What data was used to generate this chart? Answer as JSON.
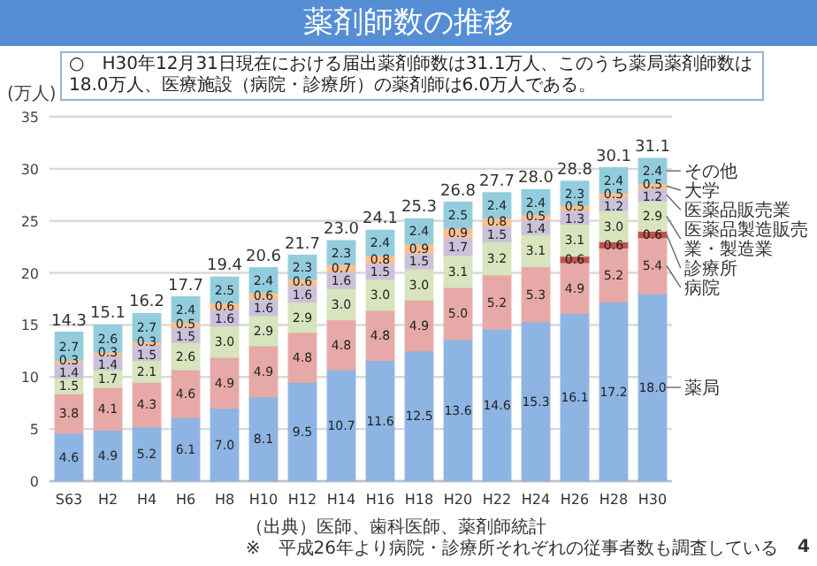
{
  "chart_data": {
    "type": "bar",
    "stacked": true,
    "title": "薬剤師数の推移",
    "subtitle": "○　H30年12月31日現在における届出薬剤師数は31.1万人、このうち薬局薬剤師数は18.0万人、医療施設（病院・診療所）の薬剤師は6.0万人である。",
    "ylabel": "(万人)",
    "categories": [
      "S63",
      "H2",
      "H4",
      "H6",
      "H8",
      "H10",
      "H12",
      "H14",
      "H16",
      "H18",
      "H20",
      "H22",
      "H24",
      "H26",
      "H28",
      "H30"
    ],
    "series": [
      {
        "name": "薬局",
        "color": "#8db4e2",
        "values": [
          4.6,
          4.9,
          5.2,
          6.1,
          7.0,
          8.1,
          9.5,
          10.7,
          11.6,
          12.5,
          13.6,
          14.6,
          15.3,
          16.1,
          17.2,
          18.0
        ],
        "value_labels": [
          "4.6",
          "4.9",
          "5.2",
          "6.1",
          "7.0",
          "8.1",
          "9.5",
          "10.7",
          "11.6",
          "12.5",
          "13.6",
          "14.6",
          "15.3",
          "16.1",
          "17.2",
          "18.0"
        ]
      },
      {
        "name": "病院",
        "color": "#e6a9a7",
        "values": [
          3.8,
          4.1,
          4.3,
          4.6,
          4.9,
          4.9,
          4.8,
          4.8,
          4.8,
          4.9,
          5.0,
          5.2,
          5.3,
          4.9,
          5.2,
          5.4
        ],
        "value_labels": [
          "3.8",
          "4.1",
          "4.3",
          "4.6",
          "4.9",
          "4.9",
          "4.8",
          "4.8",
          "4.8",
          "4.9",
          "5.0",
          "5.2",
          "5.3",
          "4.9",
          "5.2",
          "5.4"
        ]
      },
      {
        "name": "診療所",
        "color": "#c0504d",
        "values": [
          null,
          null,
          null,
          null,
          null,
          null,
          null,
          null,
          null,
          null,
          null,
          null,
          null,
          0.6,
          0.6,
          0.6
        ],
        "value_labels": [
          null,
          null,
          null,
          null,
          null,
          null,
          null,
          null,
          null,
          null,
          null,
          null,
          null,
          "0.6",
          "0.6",
          "0.6"
        ]
      },
      {
        "name": "医薬品製造販売業・製造業",
        "color": "#d7e4bd",
        "values": [
          1.5,
          1.7,
          2.1,
          2.6,
          3.0,
          2.9,
          2.9,
          3.0,
          3.0,
          3.0,
          3.1,
          3.2,
          3.1,
          3.1,
          3.0,
          2.9
        ],
        "value_labels": [
          "1.5",
          "1.7",
          "2.1",
          "2.6",
          "3.0",
          "2.9",
          "2.9",
          "3.0",
          "3.0",
          "3.0",
          "3.1",
          "3.2",
          "3.1",
          "3.1",
          "3.0",
          "2.9"
        ]
      },
      {
        "name": "医薬品販売業",
        "color": "#ccc1da",
        "values": [
          1.4,
          1.4,
          1.5,
          1.5,
          1.6,
          1.6,
          1.6,
          1.6,
          1.5,
          1.5,
          1.7,
          1.5,
          1.4,
          1.3,
          1.2,
          1.2
        ],
        "value_labels": [
          "1.4",
          "1.4",
          "1.5",
          "1.5",
          "1.6",
          "1.6",
          "1.6",
          "1.6",
          "1.5",
          "1.5",
          "1.7",
          "1.5",
          "1.4",
          "1.3",
          "1.2",
          "1.2"
        ]
      },
      {
        "name": "大学",
        "color": "#fac090",
        "values": [
          0.3,
          0.3,
          0.3,
          0.5,
          0.6,
          0.6,
          0.6,
          0.7,
          0.8,
          0.9,
          0.9,
          0.8,
          0.5,
          0.5,
          0.5,
          0.5
        ],
        "value_labels": [
          "0.3",
          "0.3",
          "0.3",
          "0.5",
          "0.6",
          "0.6",
          "0.6",
          "0.7",
          "0.8",
          "0.9",
          "0.9",
          "0.8",
          "0.5",
          "0.5",
          "0.5",
          "0.5"
        ]
      },
      {
        "name": "その他",
        "color": "#93cddd",
        "values": [
          2.7,
          2.6,
          2.7,
          2.4,
          2.5,
          2.4,
          2.3,
          2.3,
          2.4,
          2.4,
          2.5,
          2.4,
          2.4,
          2.3,
          2.4,
          2.4
        ],
        "value_labels": [
          "2.7",
          "2.6",
          "2.7",
          "2.4",
          "2.5",
          "2.4",
          "2.3",
          "2.3",
          "2.4",
          "2.4",
          "2.5",
          "2.4",
          "2.4",
          "2.3",
          "2.4",
          "2.4"
        ]
      }
    ],
    "totals": [
      "14.3",
      "15.1",
      "16.2",
      "17.7",
      "19.4",
      "20.6",
      "21.7",
      "23.0",
      "24.1",
      "25.3",
      "26.8",
      "27.7",
      "28.0",
      "28.8",
      "30.1",
      "31.1"
    ],
    "ylim": [
      0,
      35
    ],
    "yticks": [
      0,
      5,
      10,
      15,
      20,
      25,
      30,
      35
    ],
    "grid": "y",
    "annotations": [
      "（出典）医師、歯科医師、薬剤師統計",
      "※　平成26年より病院・診療所それぞれの従事者数も調査している",
      "4"
    ]
  }
}
